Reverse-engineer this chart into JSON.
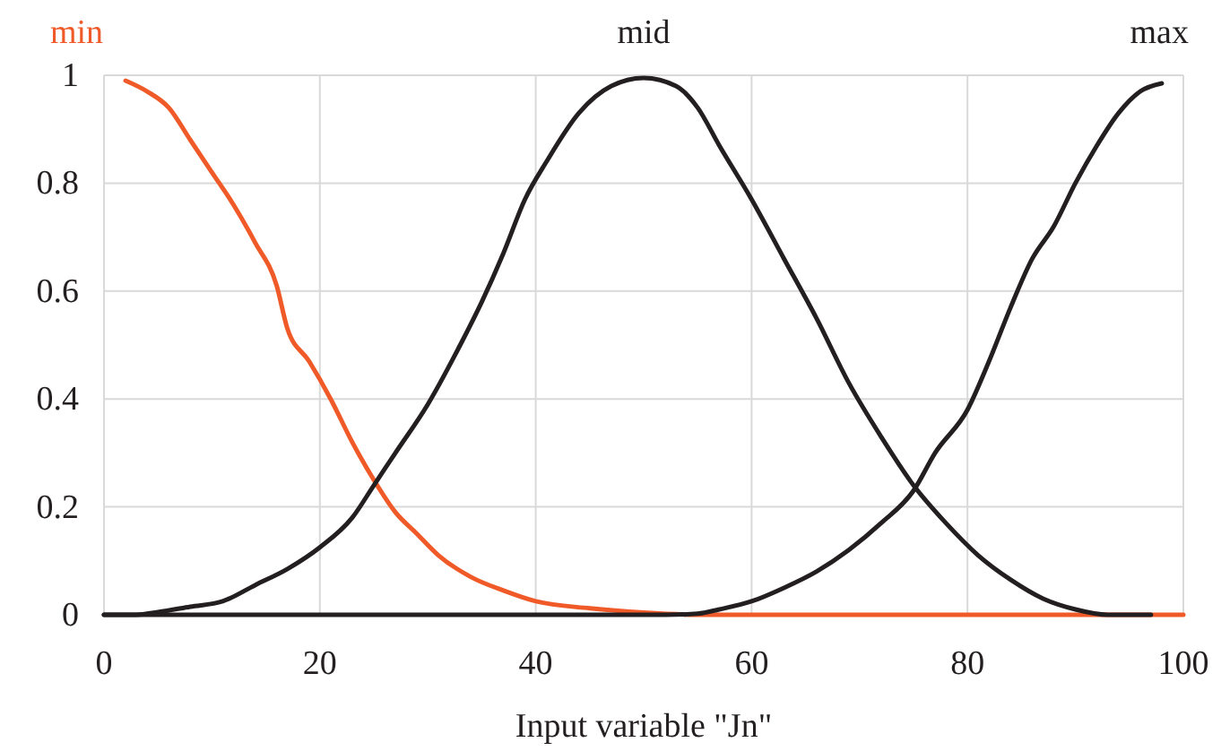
{
  "chart_data": {
    "type": "line",
    "xlabel": "Input variable \"Jn\"",
    "xlim": [
      0,
      100
    ],
    "xticks": [
      0,
      20,
      40,
      60,
      80,
      100
    ],
    "ylim": [
      0,
      1
    ],
    "yticks": [
      0,
      0.2,
      0.4,
      0.6,
      0.8,
      1
    ],
    "grid": true,
    "line_style": "solid",
    "series": [
      {
        "name": "min",
        "color": "#f05a28",
        "x": [
          2,
          4,
          6,
          8,
          10,
          12,
          14,
          16,
          17,
          19,
          21,
          23,
          25,
          27,
          29,
          31,
          34,
          37,
          40,
          45,
          50,
          55,
          60,
          70,
          80,
          90,
          100
        ],
        "values": [
          0.99,
          0.97,
          0.94,
          0.88,
          0.82,
          0.76,
          0.69,
          0.61,
          0.53,
          0.47,
          0.4,
          0.32,
          0.25,
          0.19,
          0.15,
          0.11,
          0.07,
          0.045,
          0.025,
          0.012,
          0.004,
          0,
          0,
          0,
          0,
          0,
          0
        ]
      },
      {
        "name": "mid",
        "color": "#231f20",
        "x": [
          0,
          3,
          5,
          8,
          11,
          14,
          17,
          20,
          23,
          25,
          27,
          30,
          33,
          35,
          37,
          39,
          41,
          44,
          47,
          50,
          53,
          55,
          57,
          60,
          63,
          66,
          69,
          72,
          75,
          78,
          81,
          84,
          87,
          90,
          93,
          95,
          97
        ],
        "values": [
          0,
          0,
          0.005,
          0.015,
          0.025,
          0.055,
          0.085,
          0.125,
          0.18,
          0.24,
          0.3,
          0.39,
          0.5,
          0.58,
          0.67,
          0.77,
          0.84,
          0.93,
          0.98,
          0.995,
          0.98,
          0.94,
          0.87,
          0.77,
          0.66,
          0.55,
          0.43,
          0.33,
          0.24,
          0.17,
          0.11,
          0.065,
          0.03,
          0.01,
          0,
          0,
          0
        ]
      },
      {
        "name": "max",
        "color": "#231f20",
        "x": [
          0,
          20,
          40,
          50,
          52,
          55,
          57,
          60,
          63,
          66,
          69,
          72,
          75,
          77,
          80,
          82,
          84,
          86,
          88,
          90,
          92,
          94,
          96,
          98
        ],
        "values": [
          0,
          0,
          0,
          0,
          0,
          0.002,
          0.01,
          0.025,
          0.05,
          0.08,
          0.12,
          0.17,
          0.23,
          0.3,
          0.38,
          0.47,
          0.57,
          0.66,
          0.72,
          0.8,
          0.87,
          0.93,
          0.97,
          0.985
        ]
      }
    ]
  }
}
